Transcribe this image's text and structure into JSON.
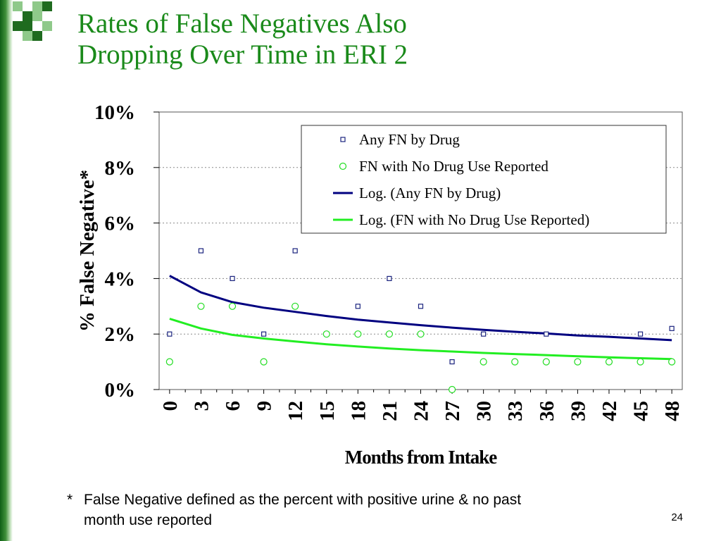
{
  "slide": {
    "title_line1": "Rates of False Negatives Also",
    "title_line2": "Dropping Over Time in ERI 2",
    "footnote_marker": "*",
    "footnote_line1": "False Negative defined as the percent with positive urine & no past",
    "footnote_line2": "month use reported",
    "page_number": "24",
    "colors": {
      "title": "#1a8a1a",
      "sidebar_dark": "#0f5f16",
      "logo_dark": "#1f6b1f",
      "logo_light": "#8fc98a"
    }
  },
  "chart_data": {
    "type": "scatter",
    "title": "",
    "xlabel": "Months from Intake",
    "ylabel": "% False Negative*",
    "x_ticks": [
      0,
      3,
      6,
      9,
      12,
      15,
      18,
      21,
      24,
      27,
      30,
      33,
      36,
      39,
      42,
      45,
      48
    ],
    "y_ticks": [
      0,
      2,
      4,
      6,
      8,
      10
    ],
    "y_tick_labels": [
      "0%",
      "2%",
      "4%",
      "6%",
      "8%",
      "10%"
    ],
    "xlim": [
      -1,
      49
    ],
    "ylim": [
      0,
      10
    ],
    "grid": "horizontal dotted",
    "legend_position": "top-right",
    "series": [
      {
        "name": "Any FN by Drug",
        "marker": "square",
        "color": "#1a237e",
        "x": [
          0,
          3,
          6,
          9,
          12,
          15,
          18,
          21,
          24,
          27,
          30,
          33,
          36,
          39,
          42,
          45,
          48
        ],
        "y": [
          2,
          5,
          4,
          2,
          5,
          2,
          3,
          4,
          3,
          1,
          2,
          1,
          2,
          1,
          1,
          2,
          2.2
        ]
      },
      {
        "name": "FN with No Drug Use Reported",
        "marker": "circle",
        "color": "#22dd22",
        "x": [
          0,
          3,
          6,
          9,
          12,
          15,
          18,
          21,
          24,
          27,
          30,
          33,
          36,
          39,
          42,
          45,
          48
        ],
        "y": [
          1,
          3,
          3,
          1,
          3,
          2,
          2,
          2,
          2,
          0,
          1,
          1,
          1,
          1,
          1,
          1,
          1
        ]
      },
      {
        "name": "Log. (Any FN by Drug)",
        "type": "line",
        "color": "#000080",
        "x": [
          0,
          3,
          6,
          9,
          12,
          15,
          18,
          21,
          24,
          27,
          30,
          33,
          36,
          39,
          42,
          45,
          48
        ],
        "y": [
          4.1,
          3.5,
          3.15,
          2.95,
          2.8,
          2.65,
          2.52,
          2.42,
          2.32,
          2.23,
          2.15,
          2.08,
          2.02,
          1.95,
          1.9,
          1.84,
          1.78
        ]
      },
      {
        "name": "Log. (FN with No Drug Use Reported)",
        "type": "line",
        "color": "#22ee22",
        "x": [
          0,
          3,
          6,
          9,
          12,
          15,
          18,
          21,
          24,
          27,
          30,
          33,
          36,
          39,
          42,
          45,
          48
        ],
        "y": [
          2.55,
          2.2,
          1.97,
          1.84,
          1.73,
          1.63,
          1.55,
          1.48,
          1.42,
          1.37,
          1.32,
          1.28,
          1.24,
          1.2,
          1.16,
          1.13,
          1.1
        ]
      }
    ]
  }
}
